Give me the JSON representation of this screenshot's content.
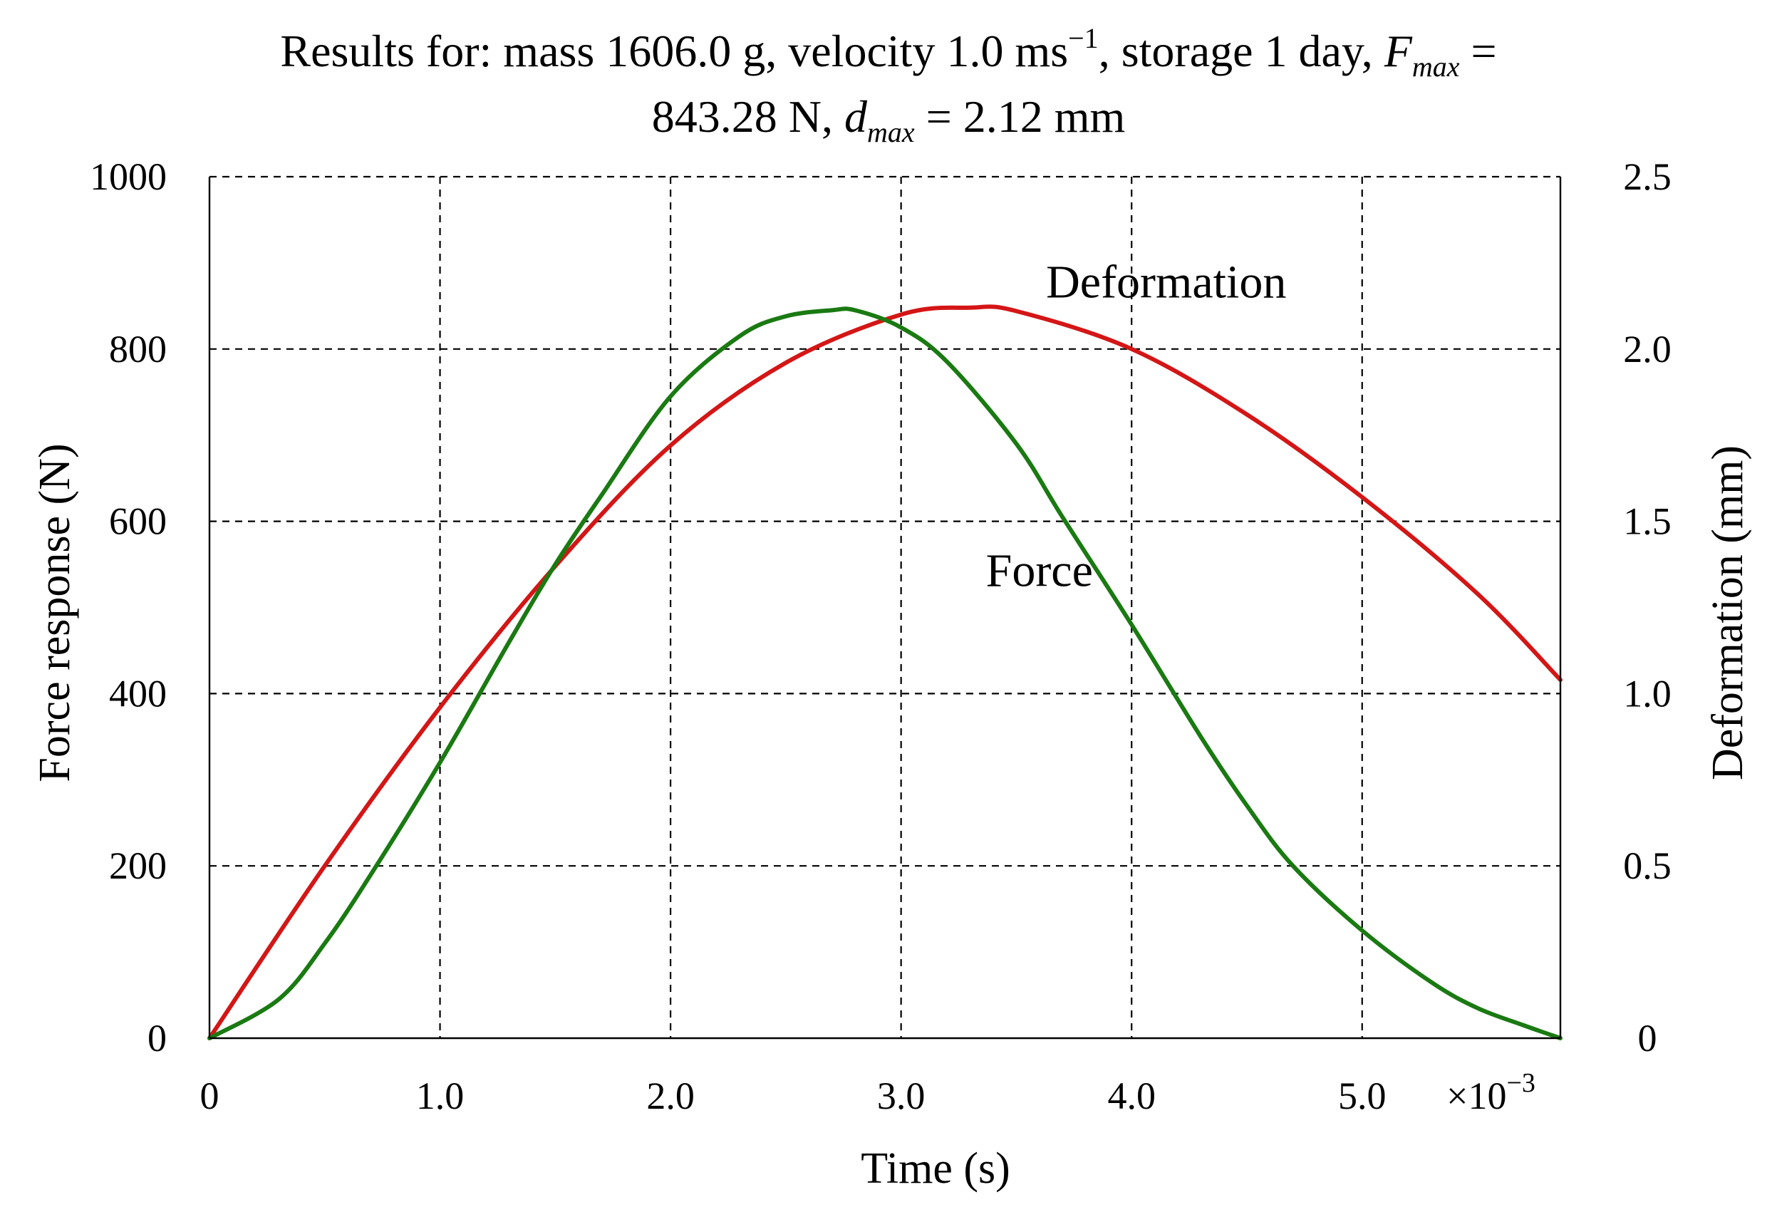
{
  "chart_data": {
    "type": "line",
    "title": {
      "line1_prefix": "Results for: mass 1606.0 g, velocity 1.0 ms",
      "line1_sup": "−1",
      "line1_mid": ", storage 1 day, ",
      "fmax_symbol": "F",
      "fmax_sub": "max",
      "fmax_eq": " =",
      "line2_value": "843.28 N, ",
      "dmax_symbol": "d",
      "dmax_sub": "max",
      "dmax_eq": " = 2.12 mm"
    },
    "xlabel": "Time (s)",
    "ylabel_left": "Force response (N)",
    "ylabel_right": "Deformation (mm)",
    "x_multiplier": {
      "base": "×10",
      "exp": "−3"
    },
    "xlim": [
      0,
      5.86
    ],
    "ylim_left": [
      0,
      1000
    ],
    "ylim_right": [
      0,
      2.5
    ],
    "x_ticks": [
      {
        "value": 0,
        "label": "0"
      },
      {
        "value": 1.0,
        "label": "1.0"
      },
      {
        "value": 2.0,
        "label": "2.0"
      },
      {
        "value": 3.0,
        "label": "3.0"
      },
      {
        "value": 4.0,
        "label": "4.0"
      },
      {
        "value": 5.0,
        "label": "5.0"
      }
    ],
    "y_ticks_left": [
      {
        "value": 0,
        "label": "0"
      },
      {
        "value": 200,
        "label": "200"
      },
      {
        "value": 400,
        "label": "400"
      },
      {
        "value": 600,
        "label": "600"
      },
      {
        "value": 800,
        "label": "800"
      },
      {
        "value": 1000,
        "label": "1000"
      }
    ],
    "y_ticks_right": [
      {
        "value": 0,
        "label": "0"
      },
      {
        "value": 0.5,
        "label": "0.5"
      },
      {
        "value": 1.0,
        "label": "1.0"
      },
      {
        "value": 1.5,
        "label": "1.5"
      },
      {
        "value": 2.0,
        "label": "2.0"
      },
      {
        "value": 2.5,
        "label": "2.5"
      }
    ],
    "grid": true,
    "series": [
      {
        "name": "Force",
        "axis": "left",
        "unit": "N",
        "color": "#1a7a12",
        "annotation": {
          "text": "Force",
          "x": 3.6,
          "y": 525
        },
        "x": [
          0,
          0.3,
          0.5,
          0.7,
          1.0,
          1.3,
          1.5,
          1.7,
          2.0,
          2.3,
          2.5,
          2.7,
          2.8,
          3.0,
          3.2,
          3.5,
          3.7,
          4.0,
          4.3,
          4.5,
          4.7,
          5.0,
          5.3,
          5.5,
          5.7,
          5.86
        ],
        "values": [
          0,
          45,
          110,
          190,
          320,
          460,
          550,
          630,
          745,
          815,
          838,
          845,
          845,
          825,
          785,
          690,
          605,
          480,
          350,
          270,
          200,
          125,
          65,
          35,
          15,
          0
        ]
      },
      {
        "name": "Deformation",
        "axis": "right",
        "unit": "mm",
        "color": "#d41616",
        "annotation": {
          "text": "Deformation",
          "x": 4.15,
          "y": 2.15
        },
        "x": [
          0,
          0.5,
          1.0,
          1.5,
          2.0,
          2.5,
          3.0,
          3.3,
          3.5,
          4.0,
          4.5,
          5.0,
          5.5,
          5.86
        ],
        "values": [
          0,
          0.5,
          0.96,
          1.37,
          1.72,
          1.96,
          2.1,
          2.12,
          2.11,
          2.0,
          1.81,
          1.57,
          1.29,
          1.04
        ]
      }
    ]
  }
}
